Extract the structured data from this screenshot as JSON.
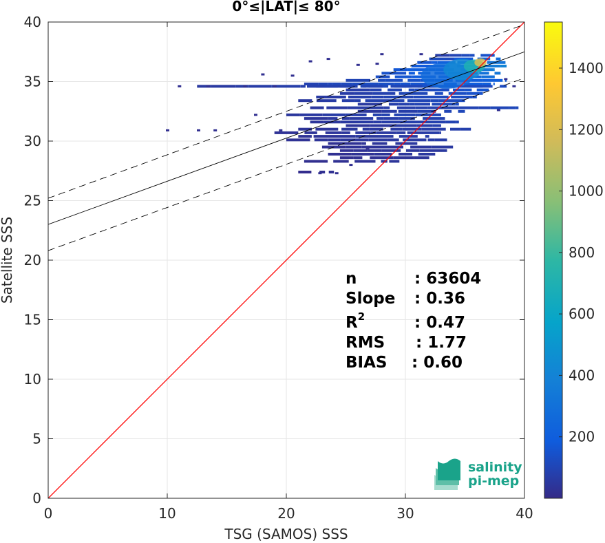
{
  "chart_data": {
    "type": "heatmap",
    "title": "0°≤|LAT|≤ 80°",
    "xlabel": "TSG (SAMOS) SSS",
    "ylabel": "Satellite SSS",
    "xlim": [
      0,
      40
    ],
    "ylim": [
      0,
      40
    ],
    "xticks": [
      "0",
      "10",
      "20",
      "30",
      "40"
    ],
    "yticks": [
      "0",
      "5",
      "10",
      "15",
      "20",
      "25",
      "30",
      "35",
      "40"
    ],
    "grid": true,
    "lines": [
      {
        "name": "",
        "kind": "identity",
        "color": "#ff0000",
        "style": "solid",
        "x": [
          0,
          40
        ],
        "y": [
          0,
          40
        ]
      },
      {
        "name": "",
        "kind": "fit",
        "color": "#000000",
        "style": "solid",
        "x": [
          0,
          40
        ],
        "y": [
          23.0,
          37.5
        ]
      },
      {
        "name": "",
        "kind": "fit-upper",
        "color": "#000000",
        "style": "dashed",
        "x": [
          0,
          40
        ],
        "y": [
          25.2,
          39.8
        ]
      },
      {
        "name": "",
        "kind": "fit-lower",
        "color": "#000000",
        "style": "dashed",
        "x": [
          0,
          40
        ],
        "y": [
          20.8,
          35.3
        ]
      }
    ],
    "density_streaks": [
      {
        "x0": 32.5,
        "x1": 37.5,
        "y": 37.2,
        "level": 120
      },
      {
        "x0": 32.0,
        "x1": 38.0,
        "y": 36.9,
        "level": 200
      },
      {
        "x0": 31.0,
        "x1": 38.5,
        "y": 36.6,
        "level": 260
      },
      {
        "x0": 30.5,
        "x1": 38.5,
        "y": 36.3,
        "level": 300
      },
      {
        "x0": 29.0,
        "x1": 37.5,
        "y": 36.0,
        "level": 280
      },
      {
        "x0": 28.0,
        "x1": 38.0,
        "y": 35.7,
        "level": 240
      },
      {
        "x0": 27.5,
        "x1": 37.5,
        "y": 35.4,
        "level": 220
      },
      {
        "x0": 25.0,
        "x1": 38.5,
        "y": 35.1,
        "level": 160
      },
      {
        "x0": 21.5,
        "x1": 37.5,
        "y": 34.8,
        "level": 150
      },
      {
        "x0": 22.5,
        "x1": 36.5,
        "y": 34.6,
        "level": 130
      },
      {
        "x0": 12.5,
        "x1": 38.5,
        "y": 34.6,
        "level": 90
      },
      {
        "x0": 25.0,
        "x1": 37.0,
        "y": 34.3,
        "level": 120
      },
      {
        "x0": 24.5,
        "x1": 36.5,
        "y": 34.0,
        "level": 110
      },
      {
        "x0": 22.5,
        "x1": 36.0,
        "y": 33.7,
        "level": 100
      },
      {
        "x0": 21.0,
        "x1": 35.0,
        "y": 33.4,
        "level": 90
      },
      {
        "x0": 26.0,
        "x1": 34.5,
        "y": 33.1,
        "level": 90
      },
      {
        "x0": 22.0,
        "x1": 39.5,
        "y": 32.8,
        "level": 80
      },
      {
        "x0": 26.0,
        "x1": 35.0,
        "y": 32.5,
        "level": 80
      },
      {
        "x0": 20.0,
        "x1": 33.0,
        "y": 32.2,
        "level": 80
      },
      {
        "x0": 21.5,
        "x1": 34.0,
        "y": 31.9,
        "level": 70
      },
      {
        "x0": 22.0,
        "x1": 34.5,
        "y": 31.6,
        "level": 70
      },
      {
        "x0": 25.0,
        "x1": 33.0,
        "y": 31.3,
        "level": 60
      },
      {
        "x0": 21.0,
        "x1": 35.5,
        "y": 31.0,
        "level": 60
      },
      {
        "x0": 19.0,
        "x1": 33.0,
        "y": 30.7,
        "level": 50
      },
      {
        "x0": 21.0,
        "x1": 32.0,
        "y": 30.4,
        "level": 50
      },
      {
        "x0": 20.0,
        "x1": 33.5,
        "y": 30.1,
        "level": 50
      },
      {
        "x0": 23.5,
        "x1": 31.0,
        "y": 29.8,
        "level": 40
      },
      {
        "x0": 23.0,
        "x1": 34.0,
        "y": 29.5,
        "level": 40
      },
      {
        "x0": 24.5,
        "x1": 33.5,
        "y": 29.2,
        "level": 40
      },
      {
        "x0": 23.5,
        "x1": 32.5,
        "y": 28.9,
        "level": 40
      },
      {
        "x0": 24.5,
        "x1": 32.0,
        "y": 28.6,
        "level": 30
      },
      {
        "x0": 21.5,
        "x1": 29.5,
        "y": 28.3,
        "level": 30
      },
      {
        "x0": 21.0,
        "x1": 24.0,
        "y": 27.4,
        "level": 20
      }
    ],
    "density_blobs": [
      {
        "x": 36.3,
        "y": 36.6,
        "rx": 0.5,
        "ry": 0.35,
        "level": 1200
      },
      {
        "x": 35.8,
        "y": 36.3,
        "rx": 0.9,
        "ry": 0.55,
        "level": 700
      },
      {
        "x": 34.8,
        "y": 36.0,
        "rx": 1.6,
        "ry": 0.9,
        "level": 420
      },
      {
        "x": 33.5,
        "y": 35.5,
        "rx": 2.2,
        "ry": 1.1,
        "level": 260
      }
    ],
    "sparse_points": [
      {
        "x": 10.0,
        "y": 30.9
      },
      {
        "x": 11.0,
        "y": 34.6
      },
      {
        "x": 12.6,
        "y": 30.9
      },
      {
        "x": 14.0,
        "y": 30.9
      },
      {
        "x": 16.5,
        "y": 34.6
      },
      {
        "x": 18.0,
        "y": 35.6
      },
      {
        "x": 19.5,
        "y": 30.9
      },
      {
        "x": 20.5,
        "y": 35.5
      },
      {
        "x": 22.0,
        "y": 36.7
      },
      {
        "x": 22.8,
        "y": 27.3
      },
      {
        "x": 23.5,
        "y": 36.9
      },
      {
        "x": 24.2,
        "y": 27.3
      },
      {
        "x": 26.0,
        "y": 36.4
      },
      {
        "x": 26.8,
        "y": 29.4
      },
      {
        "x": 27.6,
        "y": 36.5
      },
      {
        "x": 28.0,
        "y": 37.3
      },
      {
        "x": 31.3,
        "y": 37.3
      },
      {
        "x": 39.1,
        "y": 34.6
      },
      {
        "x": 38.4,
        "y": 35.2
      },
      {
        "x": 37.8,
        "y": 32.6
      },
      {
        "x": 17.4,
        "y": 32.2
      },
      {
        "x": 13.4,
        "y": 34.6
      },
      {
        "x": 25.4,
        "y": 28.0
      },
      {
        "x": 19.0,
        "y": 34.6
      }
    ],
    "colorbar": {
      "min": 0,
      "max": 1550,
      "ticks": [
        "200",
        "400",
        "600",
        "800",
        "1000",
        "1200",
        "1400"
      ],
      "tick_values": [
        200,
        400,
        600,
        800,
        1000,
        1200,
        1400
      ],
      "colormap": "parula"
    },
    "stats": [
      {
        "label": "n",
        "value": ": 63604"
      },
      {
        "label": "Slope",
        "value": ": 0.36"
      },
      {
        "label": "R",
        "superscript": "2",
        "value": ": 0.47"
      },
      {
        "label": "RMS",
        "value": ": 1.77"
      },
      {
        "label": "BIAS",
        "value": ": 0.60"
      }
    ]
  },
  "logo": {
    "line1": "salinity",
    "line2": "pi-mep",
    "color": "#1aa38a"
  }
}
